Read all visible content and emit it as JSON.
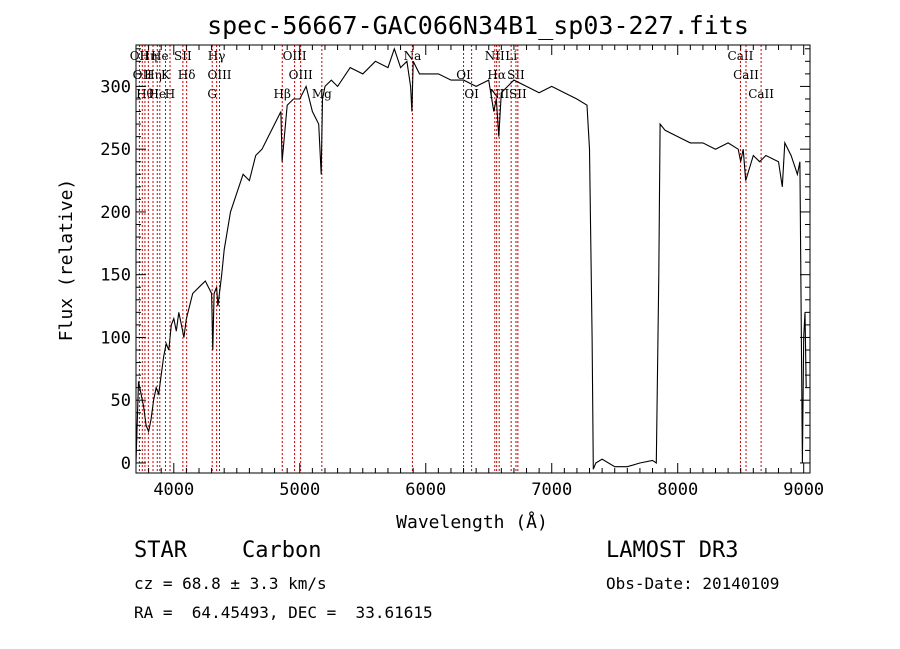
{
  "chart_data": {
    "type": "line",
    "title": "spec-56667-GAC066N34B1_sp03-227.fits",
    "xlabel": "Wavelength (Å)",
    "ylabel": "Flux (relative)",
    "xlim": [
      3700,
      9050
    ],
    "ylim": [
      -8,
      333
    ],
    "x_ticks": [
      4000,
      5000,
      6000,
      7000,
      8000,
      9000
    ],
    "y_ticks": [
      0,
      50,
      100,
      150,
      200,
      250,
      300
    ],
    "grid": false,
    "series": [
      {
        "color": "#000000",
        "x": [
          3700,
          3720,
          3740,
          3760,
          3780,
          3800,
          3820,
          3840,
          3860,
          3880,
          3900,
          3920,
          3940,
          3960,
          3980,
          4000,
          4020,
          4040,
          4060,
          4080,
          4100,
          4150,
          4200,
          4250,
          4300,
          4310,
          4320,
          4340,
          4350,
          4380,
          4400,
          4450,
          4500,
          4550,
          4600,
          4650,
          4700,
          4750,
          4800,
          4850,
          4860,
          4900,
          4950,
          5000,
          5050,
          5100,
          5150,
          5170,
          5180,
          5200,
          5250,
          5300,
          5400,
          5500,
          5600,
          5700,
          5750,
          5800,
          5850,
          5880,
          5890,
          5900,
          5950,
          6000,
          6100,
          6200,
          6300,
          6400,
          6500,
          6540,
          6560,
          6580,
          6600,
          6700,
          6800,
          6900,
          7000,
          7100,
          7200,
          7280,
          7300,
          7320,
          7330,
          7350,
          7400,
          7500,
          7600,
          7700,
          7800,
          7830,
          7850,
          7860,
          7900,
          8000,
          8100,
          8200,
          8300,
          8400,
          8480,
          8500,
          8520,
          8540,
          8600,
          8650,
          8700,
          8800,
          8830,
          8850,
          8900,
          8950,
          8970,
          8990,
          9000,
          9010,
          9020
        ],
        "y": [
          0,
          65,
          55,
          45,
          30,
          25,
          35,
          50,
          60,
          55,
          70,
          85,
          95,
          90,
          110,
          115,
          105,
          120,
          110,
          100,
          115,
          135,
          140,
          145,
          135,
          90,
          135,
          140,
          125,
          150,
          170,
          200,
          215,
          230,
          225,
          245,
          250,
          260,
          270,
          280,
          240,
          285,
          290,
          290,
          300,
          280,
          270,
          230,
          290,
          300,
          305,
          300,
          315,
          310,
          320,
          315,
          330,
          315,
          320,
          300,
          280,
          320,
          310,
          310,
          310,
          305,
          305,
          300,
          305,
          280,
          290,
          260,
          295,
          305,
          300,
          295,
          300,
          295,
          290,
          285,
          250,
          100,
          -5,
          0,
          3,
          -3,
          -3,
          0,
          2,
          0,
          150,
          270,
          265,
          260,
          255,
          255,
          250,
          255,
          250,
          240,
          250,
          225,
          245,
          240,
          245,
          240,
          220,
          255,
          245,
          230,
          240,
          0,
          100,
          120,
          60
        ]
      }
    ],
    "line_markers": [
      {
        "x": 3727,
        "label": "OII"
      },
      {
        "x": 3750,
        "label": "OII"
      },
      {
        "x": 3771,
        "label": "Hθ"
      },
      {
        "x": 3798,
        "label": "Hη"
      },
      {
        "x": 3835,
        "label": "Hη"
      },
      {
        "x": 3869,
        "label": "He"
      },
      {
        "x": 3889,
        "label": "He"
      },
      {
        "x": 3934,
        "label": "K"
      },
      {
        "x": 3970,
        "label": "H"
      },
      {
        "x": 4072,
        "label": "SII"
      },
      {
        "x": 4102,
        "label": "Hδ"
      },
      {
        "x": 4305,
        "label": "G"
      },
      {
        "x": 4340,
        "label": "Hγ"
      },
      {
        "x": 4363,
        "label": "OIII"
      },
      {
        "x": 4861,
        "label": "Hβ"
      },
      {
        "x": 4959,
        "label": "OIII"
      },
      {
        "x": 5007,
        "label": "OIII"
      },
      {
        "x": 5175,
        "label": "Mg"
      },
      {
        "x": 5894,
        "label": "Na"
      },
      {
        "x": 6300,
        "label": "OI"
      },
      {
        "x": 6364,
        "label": "OI"
      },
      {
        "x": 6548,
        "label": "NII"
      },
      {
        "x": 6563,
        "label": "Hα"
      },
      {
        "x": 6583,
        "label": "NII"
      },
      {
        "x": 6678,
        "label": "Li"
      },
      {
        "x": 6716,
        "label": "SII"
      },
      {
        "x": 6731,
        "label": "SII"
      },
      {
        "x": 8498,
        "label": "CaII"
      },
      {
        "x": 8542,
        "label": "CaII"
      },
      {
        "x": 8662,
        "label": "CaII"
      }
    ]
  },
  "info": {
    "object_class": "STAR",
    "subclass": "Carbon",
    "survey": "LAMOST DR3",
    "cz": "cz = 68.8 ± 3.3 km/s",
    "obs_date": "Obs-Date: 20140109",
    "coords": "RA =  64.45493, DEC =  33.61615"
  },
  "colors": {
    "spectrum": "#000000",
    "marker_line": "#cc0000"
  }
}
